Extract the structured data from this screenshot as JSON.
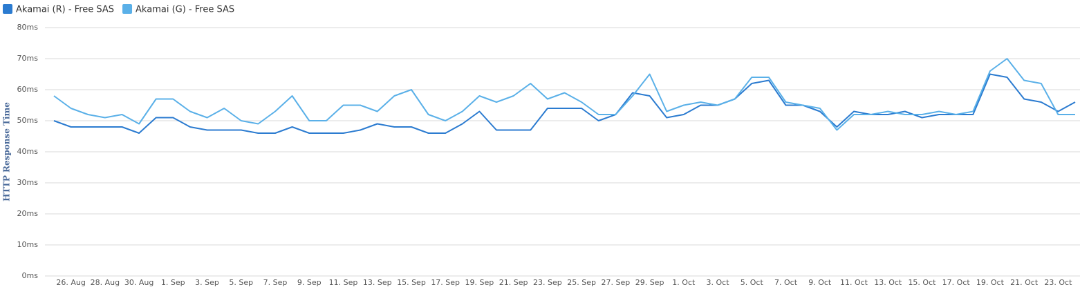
{
  "chart_data": {
    "type": "line",
    "y_label": "HTTP Response Time",
    "categories": [
      null,
      "26. Aug",
      null,
      "28. Aug",
      null,
      "30. Aug",
      null,
      "1. Sep",
      null,
      "3. Sep",
      null,
      "5. Sep",
      null,
      "7. Sep",
      null,
      "9. Sep",
      null,
      "11. Sep",
      null,
      "13. Sep",
      null,
      "15. Sep",
      null,
      "17. Sep",
      null,
      "19. Sep",
      null,
      "21. Sep",
      null,
      "23. Sep",
      null,
      "25. Sep",
      null,
      "27. Sep",
      null,
      "29. Sep",
      null,
      "1. Oct",
      null,
      "3. Oct",
      null,
      "5. Oct",
      null,
      "7. Oct",
      null,
      "9. Oct",
      null,
      "11. Oct",
      null,
      "13. Oct",
      null,
      "15. Oct",
      null,
      "17. Oct",
      null,
      "19. Oct",
      null,
      "21. Oct",
      null,
      "23. Oct",
      null
    ],
    "series": [
      {
        "name": "Akamai (R) - Free SAS",
        "color": "#2b7bd0",
        "values": [
          50,
          48,
          48,
          48,
          48,
          46,
          51,
          51,
          48,
          47,
          47,
          47,
          46,
          46,
          48,
          46,
          46,
          46,
          47,
          49,
          48,
          48,
          46,
          46,
          49,
          53,
          47,
          47,
          47,
          54,
          54,
          54,
          50,
          52,
          59,
          58,
          51,
          52,
          55,
          55,
          57,
          62,
          63,
          55,
          55,
          53,
          48,
          53,
          52,
          52,
          53,
          51,
          52,
          52,
          52,
          65,
          64,
          57,
          56,
          53,
          56
        ]
      },
      {
        "name": "Akamai (G) - Free SAS",
        "color": "#5ab0e8",
        "values": [
          58,
          54,
          52,
          51,
          52,
          49,
          57,
          57,
          53,
          51,
          54,
          50,
          49,
          53,
          58,
          50,
          50,
          55,
          55,
          53,
          58,
          60,
          52,
          50,
          53,
          58,
          56,
          58,
          62,
          57,
          59,
          56,
          52,
          52,
          58,
          65,
          53,
          55,
          56,
          55,
          57,
          64,
          64,
          56,
          55,
          54,
          47,
          52,
          52,
          53,
          52,
          52,
          53,
          52,
          53,
          66,
          70,
          63,
          62,
          52,
          52
        ]
      }
    ],
    "ylim": [
      0,
      80
    ],
    "yticks": [
      {
        "value": 0,
        "label": "0ms"
      },
      {
        "value": 10,
        "label": "10ms"
      },
      {
        "value": 20,
        "label": "20ms"
      },
      {
        "value": 30,
        "label": "30ms"
      },
      {
        "value": 40,
        "label": "40ms"
      },
      {
        "value": 50,
        "label": "50ms"
      },
      {
        "value": 60,
        "label": "60ms"
      },
      {
        "value": 70,
        "label": "70ms"
      },
      {
        "value": 80,
        "label": "80ms"
      }
    ],
    "grid": true
  }
}
